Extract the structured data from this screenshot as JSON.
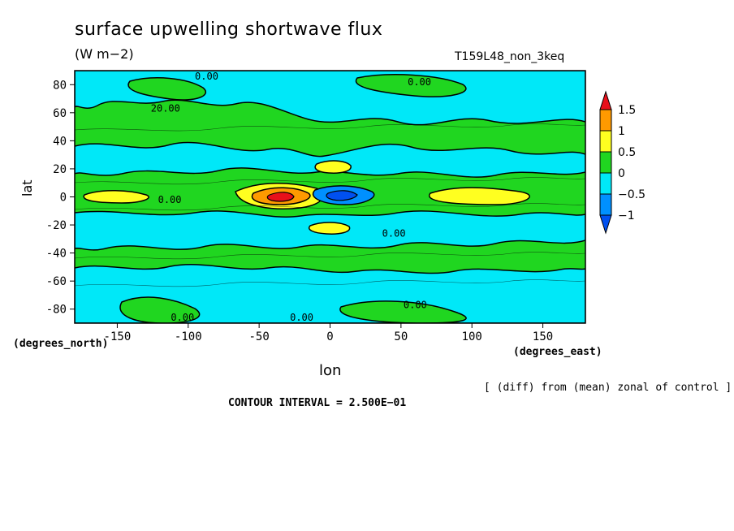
{
  "chart_data": {
    "type": "heatmap",
    "title": "surface upwelling shortwave flux",
    "units": "(W m−2)",
    "run_label": "T159L48_non_3keq",
    "xlabel": "lon",
    "ylabel": "lat",
    "x_units": "(degrees_east)",
    "y_units": "(degrees_north)",
    "xlim": [
      -180,
      180
    ],
    "ylim": [
      -90,
      90
    ],
    "x_ticks": [
      -150,
      -100,
      -50,
      0,
      50,
      100,
      150
    ],
    "y_ticks": [
      80,
      60,
      40,
      20,
      0,
      -20,
      -40,
      -60,
      -80
    ],
    "colorbar": {
      "levels": [
        1.5,
        1,
        0.5,
        0,
        -0.5,
        -1
      ],
      "level_labels": [
        "1.5",
        "1",
        "0.5",
        "0",
        "−0.5",
        "−1"
      ],
      "colors": [
        "#e8101a",
        "#ff9a00",
        "#ffff20",
        "#20d620",
        "#00e8f8",
        "#0090ff",
        "#0050f0"
      ]
    },
    "contour_labels": [
      {
        "text": "0.00",
        "lon": -87,
        "lat": 86
      },
      {
        "text": "0.00",
        "lon": 63,
        "lat": 82
      },
      {
        "text": "20.00",
        "lon": -116,
        "lat": 63
      },
      {
        "text": "0.00",
        "lon": -113,
        "lat": -2
      },
      {
        "text": "0.00",
        "lon": 45,
        "lat": -26
      },
      {
        "text": "0.00",
        "lon": -104,
        "lat": -86
      },
      {
        "text": "0.00",
        "lon": -20,
        "lat": -86
      },
      {
        "text": "0.00",
        "lon": 60,
        "lat": -77
      }
    ],
    "grid": false
  },
  "annotations": {
    "note": "[ (diff) from (mean) zonal of control ]",
    "contour_interval": "CONTOUR INTERVAL = 2.500E−01"
  }
}
